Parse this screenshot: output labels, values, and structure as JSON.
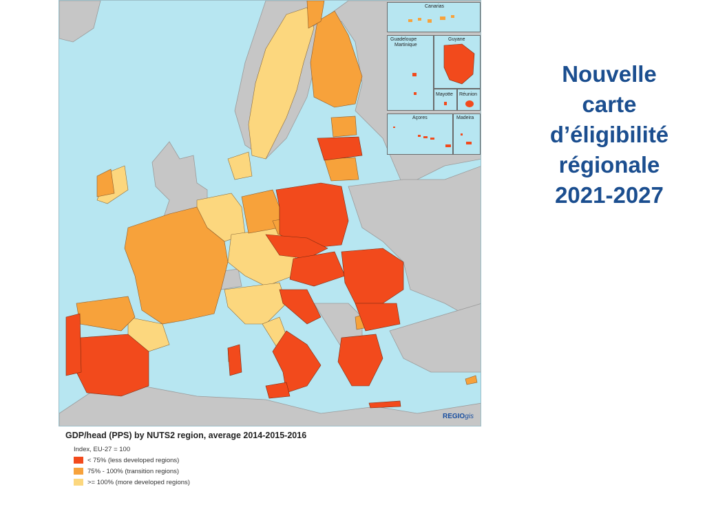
{
  "title": {
    "lines": [
      "Nouvelle",
      "carte",
      "d’éligibilité",
      "régionale",
      "2021-2027"
    ]
  },
  "map": {
    "insets": {
      "canarias": "Canarias",
      "guadeloupe": "Guadeloupe",
      "martinique": "Martinique",
      "guyane": "Guyane",
      "mayotte": "Mayotte",
      "reunion": "Réunion",
      "acores": "Açores",
      "madeira": "Madeira"
    },
    "brand": {
      "main": "REGIO",
      "suffix": "gis"
    },
    "colors": {
      "sea": "#b7e6f1",
      "non_eu": "#c6c6c6",
      "less_developed": "#f24a1c",
      "transition": "#f7a23b",
      "more_developed": "#fcd77e"
    }
  },
  "legend": {
    "title": "GDP/head (PPS) by NUTS2 region, average 2014-2015-2016",
    "subtitle": "Index, EU-27 = 100",
    "items": [
      {
        "label": "< 75% (less developed regions)",
        "color": "#f24a1c"
      },
      {
        "label": "75% - 100% (transition regions)",
        "color": "#f7a23b"
      },
      {
        "label": ">= 100% (more developed regions)",
        "color": "#fcd77e"
      }
    ]
  }
}
